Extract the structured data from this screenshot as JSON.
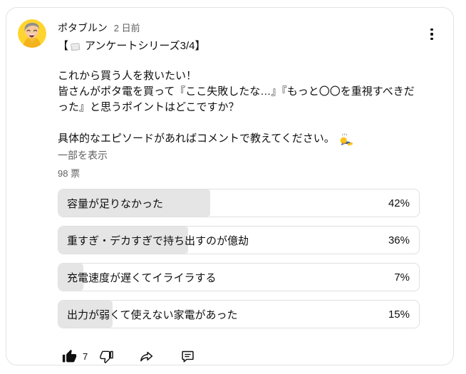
{
  "header": {
    "author": "ポタブルン",
    "timestamp": "2 日前",
    "menu_icon": "kebab-menu-icon"
  },
  "post": {
    "title_prefix": "【",
    "title_icon": "notebook-emoji",
    "title_text": "アンケートシリーズ3/4】",
    "paragraph1_lines": [
      "これから買う人を救いたい！",
      "皆さんがポタ電を買って『ここ失敗したな…』『もっと〇〇を重視すべきだった』と思うポイントはどこですか？"
    ],
    "paragraph2": "具体的なエピソードがあればコメントで教えてください。",
    "paragraph2_icon": "bowing-person-emoji",
    "show_more": "一部を表示",
    "vote_count": "98 票"
  },
  "poll": {
    "options": [
      {
        "label": "容量が足りなかった",
        "percent": "42%",
        "value": 42
      },
      {
        "label": "重すぎ・デカすぎで持ち出すのが億劫",
        "percent": "36%",
        "value": 36
      },
      {
        "label": "充電速度が遅くてイライラする",
        "percent": "7%",
        "value": 7
      },
      {
        "label": "出力が弱くて使えない家電があった",
        "percent": "15%",
        "value": 15
      }
    ]
  },
  "actions": {
    "like_count": "7",
    "icons": [
      "thumbs-up-filled",
      "thumbs-down-outline",
      "share-arrow",
      "comment-bubble"
    ]
  },
  "colors": {
    "text_primary": "#0f0f0f",
    "text_secondary": "#606060",
    "card_border": "#e3e3e3",
    "poll_fill": "#e5e5e5",
    "avatar_bg": "#ffd42e"
  }
}
